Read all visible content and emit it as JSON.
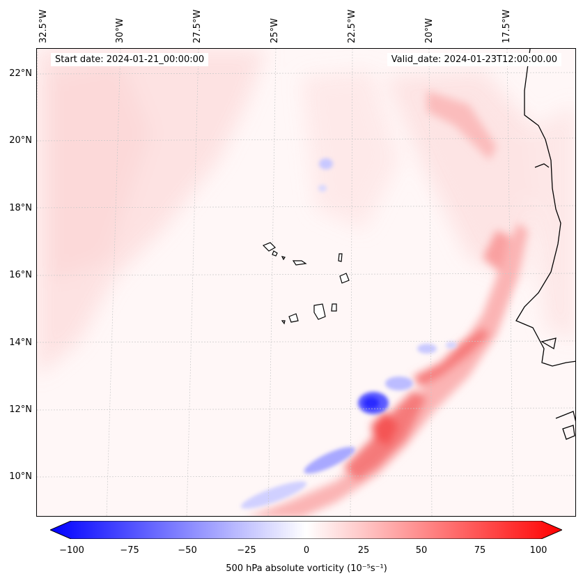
{
  "map": {
    "start_label": "Start date: 2024-01-21_00:00:00",
    "valid_label": "Valid_date: 2024-01-23T12:00:00.00",
    "lon_labels": [
      "32.5°W",
      "30°W",
      "27.5°W",
      "25°W",
      "22.5°W",
      "20°W",
      "17.5°W"
    ],
    "lat_labels": [
      "22°N",
      "20°N",
      "18°N",
      "16°N",
      "14°N",
      "12°N",
      "10°N"
    ],
    "lon_values": [
      -32.5,
      -30,
      -27.5,
      -25,
      -22.5,
      -20,
      -17.5
    ],
    "lat_values": [
      22,
      20,
      18,
      16,
      14,
      12,
      10
    ],
    "extent": {
      "lon_min": -32.5,
      "lon_max": -15.0,
      "lat_min": 8.9,
      "lat_max": 22.7
    },
    "field": "500 hPa absolute vorticity",
    "coastline_color": "#000000",
    "gridline_color": "#c8c8c8"
  },
  "colorbar": {
    "label": "500 hPa absolute vorticity (10⁻⁵s⁻¹)",
    "ticks": [
      "−100",
      "−75",
      "−50",
      "−25",
      "0",
      "25",
      "50",
      "75",
      "100"
    ],
    "tick_values": [
      -100,
      -75,
      -50,
      -25,
      0,
      25,
      50,
      75,
      100
    ],
    "vmin": -100,
    "vmax": 100,
    "colormap": "bwr",
    "min_color": "#0000ff",
    "mid_color": "#ffffff",
    "max_color": "#ff0000"
  }
}
